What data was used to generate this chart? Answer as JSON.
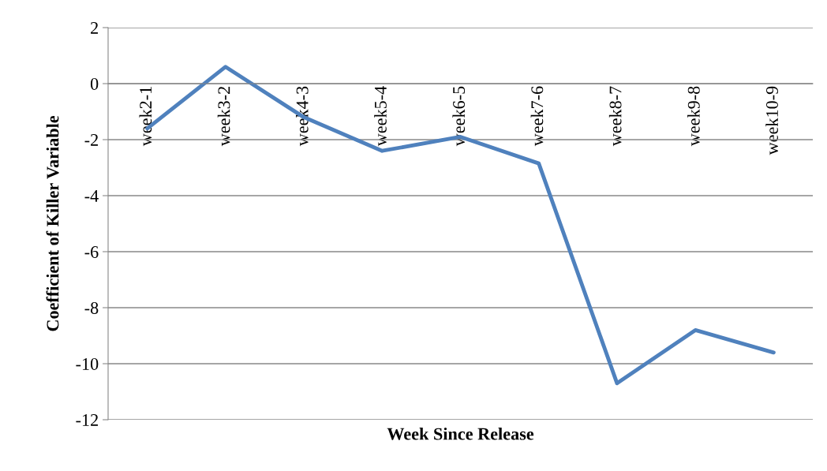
{
  "chart_data": {
    "type": "line",
    "xlabel": "Week Since Release",
    "ylabel": "Coefficient of Killer Variable",
    "categories": [
      "week2-1",
      "week3-2",
      "week4-3",
      "week5-4",
      "week6-5",
      "week7-6",
      "week8-7",
      "week9-8",
      "week10-9"
    ],
    "series": [
      {
        "color": "#4f81bd",
        "values": [
          -1.6,
          0.6,
          -1.2,
          -2.4,
          -1.9,
          -2.85,
          -10.7,
          -8.8,
          -9.6
        ]
      }
    ],
    "ylim": [
      -12,
      2
    ],
    "yticks": [
      -12,
      -10,
      -8,
      -6,
      -4,
      -2,
      0,
      2
    ],
    "grid": "y",
    "marker": "none",
    "line_style": "solid"
  }
}
